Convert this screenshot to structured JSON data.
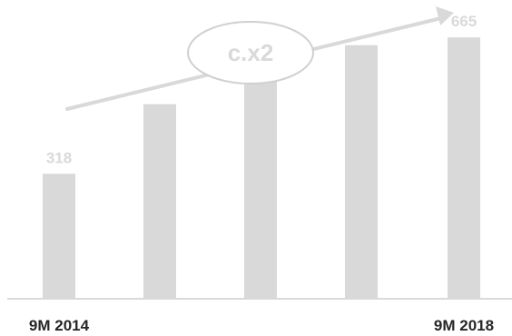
{
  "chart_data": {
    "type": "bar",
    "categories": [
      "9M 2014",
      "",
      "",
      "",
      "9M 2018"
    ],
    "values": [
      318,
      495,
      560,
      645,
      665
    ],
    "data_labels": [
      "318",
      "",
      "",
      "",
      "665"
    ],
    "ylim": [
      0,
      760
    ],
    "grid": false,
    "legend": "none",
    "annotation": {
      "text": "c.x2"
    },
    "colors": {
      "bar": "#d9d9d9",
      "label": "#d9d9d9",
      "category_label": "#262626",
      "axis": "#d9d9d9",
      "arrow": "#d9d9d9",
      "ellipse_stroke": "#d0d0d0"
    }
  }
}
